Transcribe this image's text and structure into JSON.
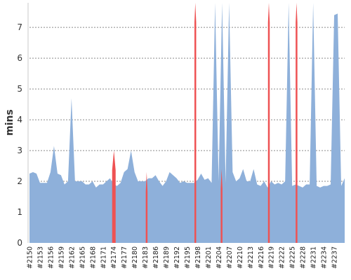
{
  "chart_data": {
    "type": "area",
    "ylabel": "mins",
    "ylim": [
      0,
      7.8
    ],
    "yticks": [
      0,
      1,
      2,
      3,
      4,
      5,
      6,
      7
    ],
    "grid": true,
    "xticks": [
      "#2150",
      "#2153",
      "#2156",
      "#2159",
      "#2162",
      "#2165",
      "#2168",
      "#2171",
      "#2174",
      "#2177",
      "#2180",
      "#2183",
      "#2186",
      "#2189",
      "#2192",
      "#2195",
      "#2198",
      "#2201",
      "#2204",
      "#2207",
      "#2210",
      "#2213",
      "#2216",
      "#2219",
      "#2222",
      "#2225",
      "#2228",
      "#2231",
      "#2234",
      "#2237"
    ],
    "x_start": 2150,
    "series": [
      {
        "color": "#8eb0da",
        "values": [
          2.25,
          2.3,
          2.25,
          1.95,
          1.95,
          1.95,
          2.3,
          3.15,
          2.25,
          2.2,
          1.9,
          2.0,
          4.7,
          2.0,
          2.0,
          2.0,
          1.9,
          1.9,
          2.0,
          1.8,
          1.9,
          1.9,
          2.0,
          2.1,
          1.9,
          1.85,
          1.95,
          2.3,
          2.4,
          3.0,
          2.3,
          2.0,
          2.0,
          2.0,
          2.1,
          2.1,
          2.2,
          2.0,
          1.85,
          2.0,
          2.3,
          2.2,
          2.1,
          1.95,
          2.0,
          1.95,
          1.95,
          1.95,
          2.05,
          2.25,
          2.05,
          2.1,
          1.95,
          8.0,
          2.0,
          8.0,
          1.95,
          8.0,
          2.3,
          2.0,
          2.1,
          2.4,
          2.0,
          2.0,
          2.4,
          1.9,
          1.85,
          2.0,
          1.8,
          2.0,
          1.9,
          1.95,
          1.9,
          2.0,
          8.0,
          1.85,
          1.9,
          1.85,
          1.8,
          1.9,
          1.9,
          8.0,
          1.85,
          1.8,
          1.85,
          1.85,
          1.9,
          7.4,
          7.45,
          1.85,
          2.1
        ]
      },
      {
        "color": "#ee5253",
        "highlights": [
          {
            "start": 2173.6,
            "end": 2174.6,
            "peak": 3.0
          },
          {
            "start": 2183.2,
            "end": 2183.7,
            "peak": 2.3
          },
          {
            "start": 2197.1,
            "end": 2197.6,
            "peak": 8.0
          },
          {
            "start": 2204.6,
            "end": 2205.1,
            "peak": 2.4
          },
          {
            "start": 2218.1,
            "end": 2218.6,
            "peak": 8.0
          },
          {
            "start": 2226.0,
            "end": 2226.5,
            "peak": 8.0
          }
        ]
      }
    ]
  }
}
